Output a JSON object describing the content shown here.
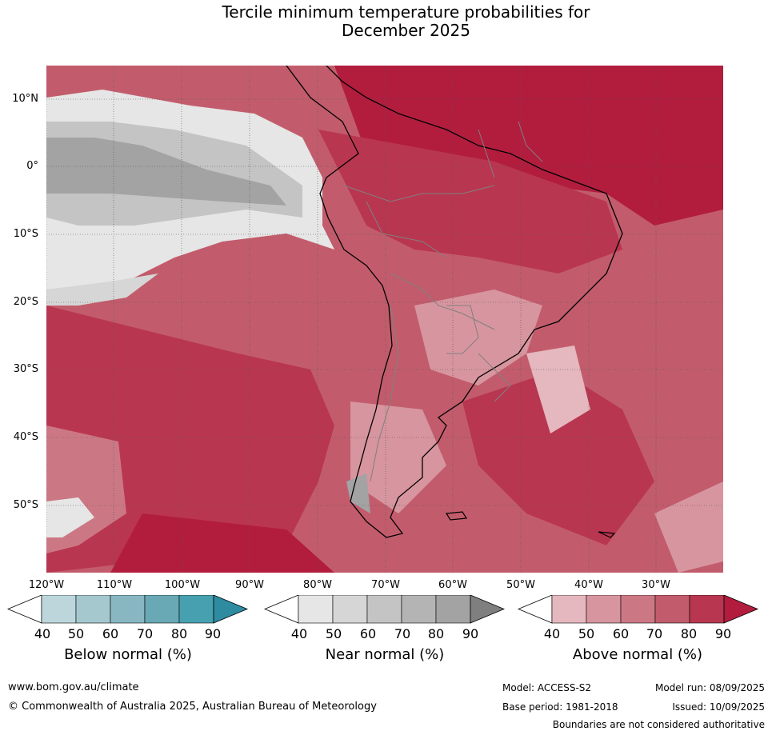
{
  "title_line1": "Tercile minimum temperature probabilities for",
  "title_line2": "December 2025",
  "lat_labels": [
    "10°N",
    "0°",
    "10°S",
    "20°S",
    "30°S",
    "40°S",
    "50°S"
  ],
  "lon_labels": [
    "120°W",
    "110°W",
    "100°W",
    "90°W",
    "80°W",
    "70°W",
    "60°W",
    "50°W",
    "40°W",
    "30°W"
  ],
  "colorbars": [
    {
      "title": "Below normal (%)",
      "ticks": [
        "40",
        "50",
        "60",
        "70",
        "80",
        "90"
      ],
      "colors": [
        "#ffffff",
        "#bcd6dc",
        "#a5c8cf",
        "#88b7c2",
        "#68a9b5",
        "#47a0b0",
        "#2e8ba0"
      ]
    },
    {
      "title": "Near normal (%)",
      "ticks": [
        "40",
        "50",
        "60",
        "70",
        "80",
        "90"
      ],
      "colors": [
        "#ffffff",
        "#e6e6e6",
        "#d6d6d6",
        "#c4c4c4",
        "#b4b4b4",
        "#a3a3a3",
        "#7f7f7f"
      ]
    },
    {
      "title": "Above normal (%)",
      "ticks": [
        "40",
        "50",
        "60",
        "70",
        "80",
        "90"
      ],
      "colors": [
        "#ffffff",
        "#e4b8be",
        "#d7959f",
        "#cc7884",
        "#c25c6c",
        "#b93650",
        "#b21d3e"
      ]
    }
  ],
  "footer": {
    "url": "www.bom.gov.au/climate",
    "copyright": "© Commonwealth of Australia 2025, Australian Bureau of Meteorology",
    "model": "Model: ACCESS-S2",
    "base_period": "Base period: 1981-2018",
    "model_run": "Model run: 08/09/2025",
    "issued": "Issued: 10/09/2025",
    "disclaimer": "Boundaries are not considered authoritative"
  }
}
